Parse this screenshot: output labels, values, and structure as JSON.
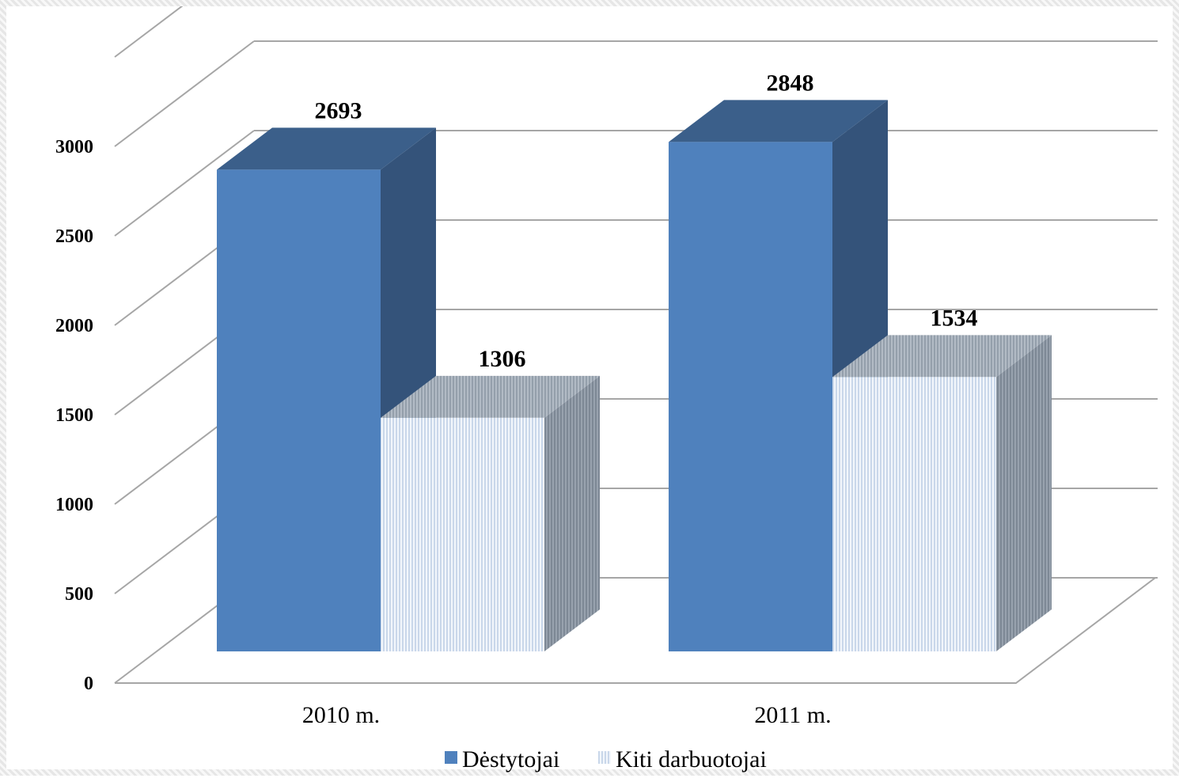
{
  "chart_data": {
    "type": "bar",
    "three_d": true,
    "categories": [
      "2010 m.",
      "2011 m."
    ],
    "series": [
      {
        "name": "Dėstytojai",
        "values": [
          2693,
          2848
        ],
        "color": "#4f81bd",
        "pattern": "solid"
      },
      {
        "name": "Kiti darbuotojai",
        "values": [
          1306,
          1534
        ],
        "color": "#dce6f2",
        "pattern": "vertical-stripes"
      }
    ],
    "data_labels": [
      [
        "2693",
        "2848"
      ],
      [
        "1306",
        "1534"
      ]
    ],
    "y_ticks": [
      "0",
      "500",
      "1000",
      "1500",
      "2000",
      "2500",
      "3000"
    ],
    "ylim": [
      0,
      3500
    ],
    "grid": true,
    "legend_position": "bottom",
    "colors": {
      "gridline": "#a6a6a6",
      "series1_side": "#34537a",
      "series1_top": "#3b5f8a",
      "series2_side": "#8c97a4",
      "series2_top": "#a4aeb9"
    }
  }
}
